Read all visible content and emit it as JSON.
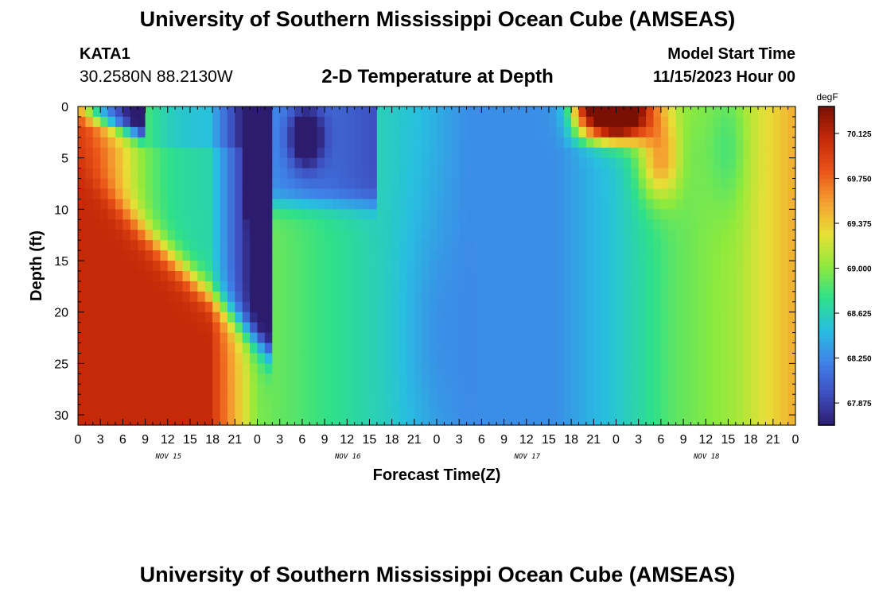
{
  "header": {
    "title": "University of Southern Mississippi Ocean Cube (AMSEAS)",
    "station_id": "KATA1",
    "station_coords": "30.2580N  88.2130W",
    "subtitle": "2-D Temperature at Depth",
    "model_start_label": "Model Start Time",
    "model_start_value": "11/15/2023 Hour 00"
  },
  "footer": {
    "title": "University of Southern Mississippi Ocean Cube (AMSEAS)"
  },
  "colors": {
    "palette": [
      "#2c1c6e",
      "#3e4fc0",
      "#3f82e8",
      "#28bfe0",
      "#2ee08a",
      "#8fea3c",
      "#e8e036",
      "#f5a030",
      "#ea5418",
      "#c42a08",
      "#7a1004"
    ]
  },
  "chart_data": {
    "type": "heatmap",
    "title": "2-D Temperature at Depth",
    "xlabel": "Forecast Time(Z)",
    "ylabel": "Depth (ft)",
    "x_range_hours": [
      0,
      96
    ],
    "y_range_ft": [
      0,
      31
    ],
    "y_inverted": true,
    "x_tick_labels": [
      "0",
      "3",
      "6",
      "9",
      "12",
      "15",
      "18",
      "21",
      "0",
      "3",
      "6",
      "9",
      "12",
      "15",
      "18",
      "21",
      "0",
      "3",
      "6",
      "9",
      "12",
      "15",
      "18",
      "21",
      "0",
      "3",
      "6",
      "9",
      "12",
      "15",
      "18",
      "21",
      "0"
    ],
    "y_tick_labels": [
      "0",
      "5",
      "10",
      "15",
      "20",
      "25",
      "30"
    ],
    "y_tick_values": [
      0,
      5,
      10,
      15,
      20,
      25,
      30
    ],
    "day_labels": [
      "NOV 15",
      "NOV 16",
      "NOV 17",
      "NOV 18"
    ],
    "colorbar": {
      "unit": "degF",
      "range": [
        67.69,
        70.35
      ],
      "tick_labels": [
        "70.125",
        "69.750",
        "69.375",
        "69.000",
        "68.625",
        "68.250",
        "67.875"
      ],
      "tick_values": [
        70.125,
        69.75,
        69.375,
        69.0,
        68.625,
        68.25,
        67.875
      ]
    }
  }
}
